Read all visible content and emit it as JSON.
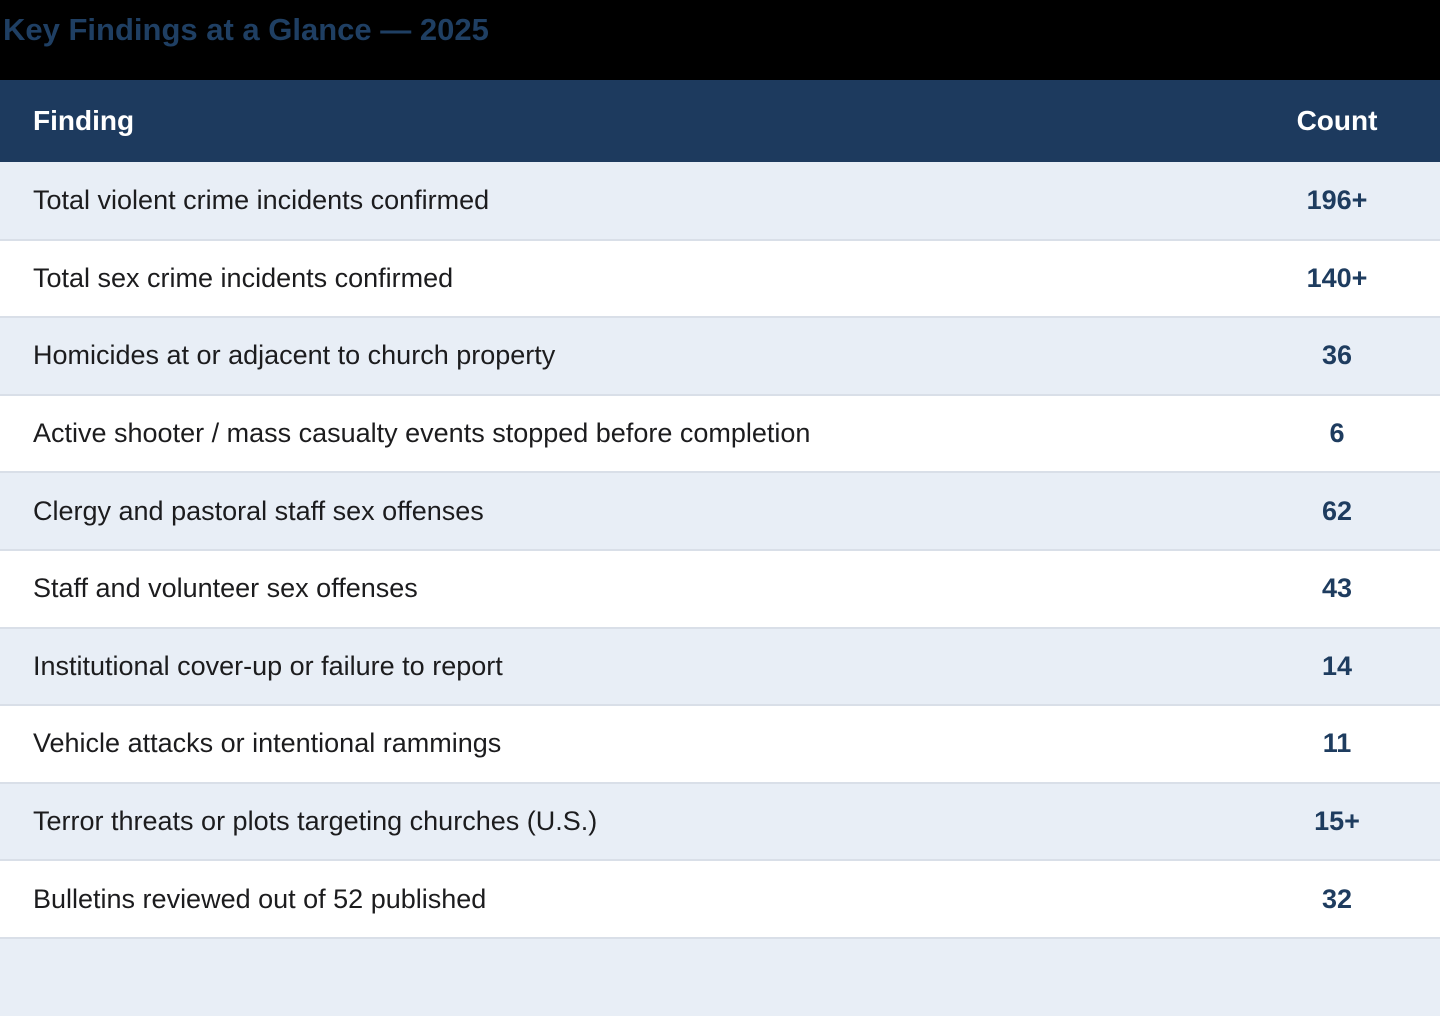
{
  "title": "Key Findings at a Glance — 2025",
  "table": {
    "headers": {
      "finding": "Finding",
      "count": "Count"
    },
    "rows": [
      {
        "finding": "Total violent crime incidents confirmed",
        "count": "196+"
      },
      {
        "finding": "Total sex crime incidents confirmed",
        "count": "140+"
      },
      {
        "finding": "Homicides at or adjacent to church property",
        "count": "36"
      },
      {
        "finding": "Active shooter / mass casualty events stopped before completion",
        "count": "6"
      },
      {
        "finding": "Clergy and pastoral staff sex offenses",
        "count": "62"
      },
      {
        "finding": "Staff and volunteer sex offenses",
        "count": "43"
      },
      {
        "finding": "Institutional cover-up or failure to report",
        "count": "14"
      },
      {
        "finding": "Vehicle attacks or intentional rammings",
        "count": "11"
      },
      {
        "finding": "Terror threats or plots targeting churches (U.S.)",
        "count": "15+"
      },
      {
        "finding": "Bulletins reviewed out of 52 published",
        "count": "32"
      }
    ]
  },
  "colors": {
    "band_bg": "#000000",
    "title_color": "#1f3f63",
    "header_bg": "#1d3a5e",
    "header_text": "#ffffff",
    "row_alt_bg": "#e8eef6",
    "row_bg": "#ffffff",
    "divider": "#d9dfe8",
    "finding_color": "#1c1c1e",
    "count_color": "#1e3c5f"
  },
  "chart_data": {
    "type": "table",
    "title": "Key Findings at a Glance — 2025",
    "columns": [
      "Finding",
      "Count"
    ],
    "rows": [
      [
        "Total violent crime incidents confirmed",
        "196+"
      ],
      [
        "Total sex crime incidents confirmed",
        "140+"
      ],
      [
        "Homicides at or adjacent to church property",
        "36"
      ],
      [
        "Active shooter / mass casualty events stopped before completion",
        "6"
      ],
      [
        "Clergy and pastoral staff sex offenses",
        "62"
      ],
      [
        "Staff and volunteer sex offenses",
        "43"
      ],
      [
        "Institutional cover-up or failure to report",
        "14"
      ],
      [
        "Vehicle attacks or intentional rammings",
        "11"
      ],
      [
        "Terror threats or plots targeting churches (U.S.)",
        "15+"
      ],
      [
        "Bulletins reviewed out of 52 published",
        "32"
      ]
    ],
    "layout": {
      "striped_rows": true,
      "count_column_alignment": "center",
      "header_style": "dark-navy-bold-white"
    }
  }
}
